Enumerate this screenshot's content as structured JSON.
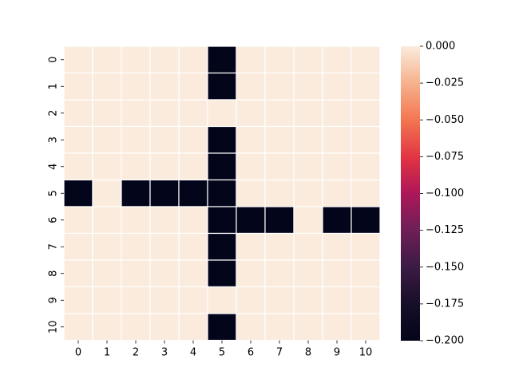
{
  "chart_data": {
    "type": "heatmap",
    "title": "",
    "xlabel": "",
    "ylabel": "",
    "x_categories": [
      "0",
      "1",
      "2",
      "3",
      "4",
      "5",
      "6",
      "7",
      "8",
      "9",
      "10"
    ],
    "y_categories": [
      "0",
      "1",
      "2",
      "3",
      "4",
      "5",
      "6",
      "7",
      "8",
      "9",
      "10"
    ],
    "values": [
      [
        0,
        0,
        0,
        0,
        0,
        -0.2,
        0,
        0,
        0,
        0,
        0
      ],
      [
        0,
        0,
        0,
        0,
        0,
        -0.2,
        0,
        0,
        0,
        0,
        0
      ],
      [
        0,
        0,
        0,
        0,
        0,
        0,
        0,
        0,
        0,
        0,
        0
      ],
      [
        0,
        0,
        0,
        0,
        0,
        -0.2,
        0,
        0,
        0,
        0,
        0
      ],
      [
        0,
        0,
        0,
        0,
        0,
        -0.2,
        0,
        0,
        0,
        0,
        0
      ],
      [
        -0.2,
        0,
        -0.2,
        -0.2,
        -0.2,
        -0.2,
        0,
        0,
        0,
        0,
        0
      ],
      [
        0,
        0,
        0,
        0,
        0,
        -0.2,
        -0.2,
        -0.2,
        0,
        -0.2,
        -0.2
      ],
      [
        0,
        0,
        0,
        0,
        0,
        -0.2,
        0,
        0,
        0,
        0,
        0
      ],
      [
        0,
        0,
        0,
        0,
        0,
        -0.2,
        0,
        0,
        0,
        0,
        0
      ],
      [
        0,
        0,
        0,
        0,
        0,
        0,
        0,
        0,
        0,
        0,
        0
      ],
      [
        0,
        0,
        0,
        0,
        0,
        -0.2,
        0,
        0,
        0,
        0,
        0
      ]
    ],
    "colorbar": {
      "min": -0.2,
      "max": 0.0,
      "ticks": [
        "0.000",
        "−0.025",
        "−0.050",
        "−0.075",
        "−0.100",
        "−0.125",
        "−0.150",
        "−0.175",
        "−0.200"
      ],
      "colormap": "rocket",
      "low_color": "#03051a",
      "high_color": "#faebdd"
    },
    "grid": true,
    "cell_border_color": "#ffffff",
    "legend": "colorbar-right"
  }
}
